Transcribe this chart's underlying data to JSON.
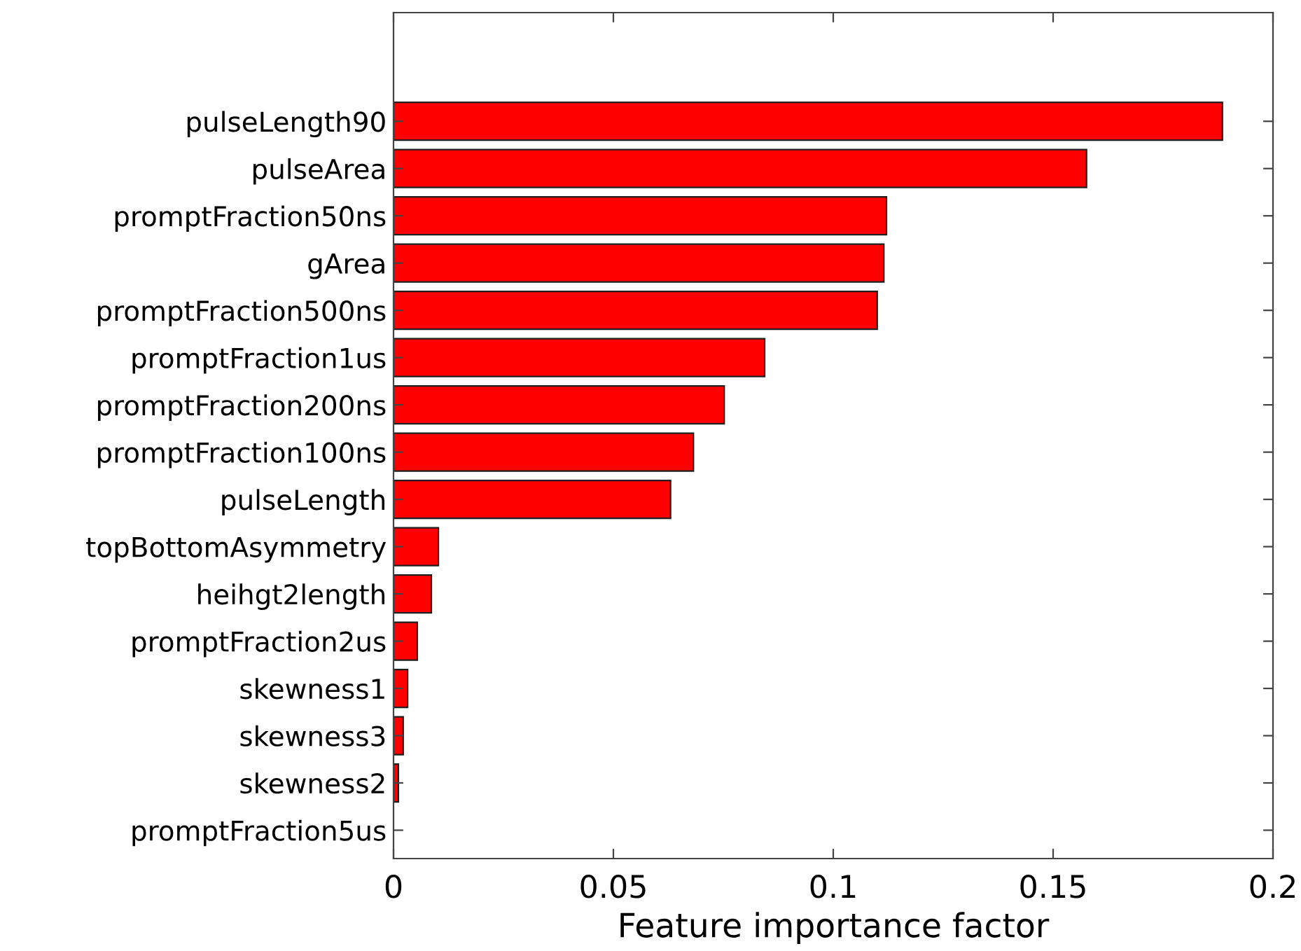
{
  "chart_data": {
    "type": "bar",
    "orientation": "horizontal",
    "xlabel": "Feature importance factor",
    "categories": [
      "pulseLength90",
      "pulseArea",
      "promptFraction50ns",
      "gArea",
      "promptFraction500ns",
      "promptFraction1us",
      "promptFraction200ns",
      "promptFraction100ns",
      "pulseLength",
      "topBottomAsymmetry",
      "heihgt2length",
      "promptFraction2us",
      "skewness1",
      "skewness3",
      "skewness2",
      "promptFraction5us"
    ],
    "values": [
      0.1885,
      0.1576,
      0.1121,
      0.1115,
      0.11,
      0.0844,
      0.0752,
      0.0682,
      0.063,
      0.0102,
      0.0086,
      0.0054,
      0.0032,
      0.0022,
      0.0011,
      null
    ],
    "color": "#ff0000",
    "xlim": [
      0,
      0.2
    ],
    "xticks": [
      0,
      0.05,
      0.1,
      0.15,
      0.2
    ],
    "grid": false
  }
}
